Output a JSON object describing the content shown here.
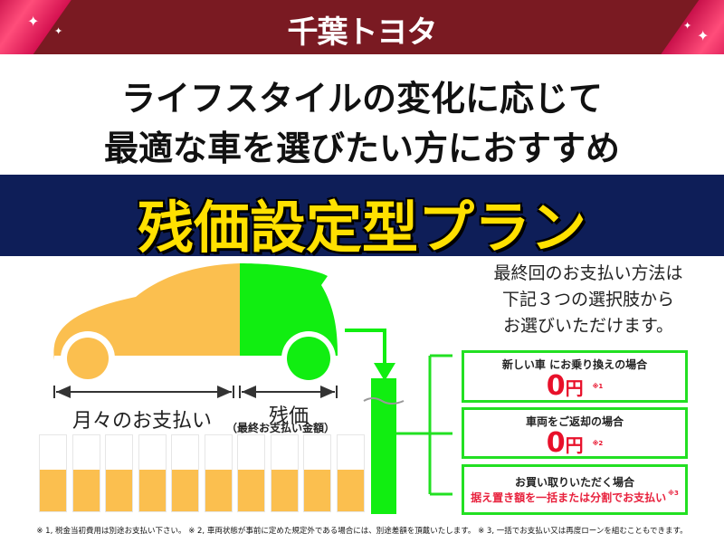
{
  "header": {
    "logo_text": "千葉トヨタ"
  },
  "headline": {
    "line1": "ライフスタイルの変化に応じて",
    "line2": "最適な車を選びたい方におすすめ"
  },
  "plan_title": "残価設定型プラン",
  "diagram": {
    "monthly_label": "月々のお支払い",
    "residual_label": "残価",
    "residual_sub": "（最終お支払い金額）",
    "monthly_bar_count": 10,
    "monthly_bar_fill": 0.55,
    "colors": {
      "monthly": "#fbbf4f",
      "residual": "#11ee11"
    }
  },
  "intro": {
    "line1": "最終回のお支払い方法は",
    "line2": "下記３つの選択肢から",
    "line3": "お選びいただけます。"
  },
  "options": [
    {
      "title": "新しい車  にお乗り換えの場合",
      "amount": "0",
      "unit": "円",
      "note": "※1"
    },
    {
      "title": "車両をご返却の場合",
      "amount": "0",
      "unit": "円",
      "note": "※2"
    },
    {
      "title": "お買い取りいただく場合",
      "detail": "据え置き額を一括または分割でお支払い",
      "note": "※3"
    }
  ],
  "footnote": "※ 1, 税金当初費用は別途お支払い下さい。 ※ 2, 車両状態が事前に定めた規定外である場合には、別途差額を頂戴いたします。 ※ 3, 一括でお支払い又は再度ローンを組むこともできます。"
}
